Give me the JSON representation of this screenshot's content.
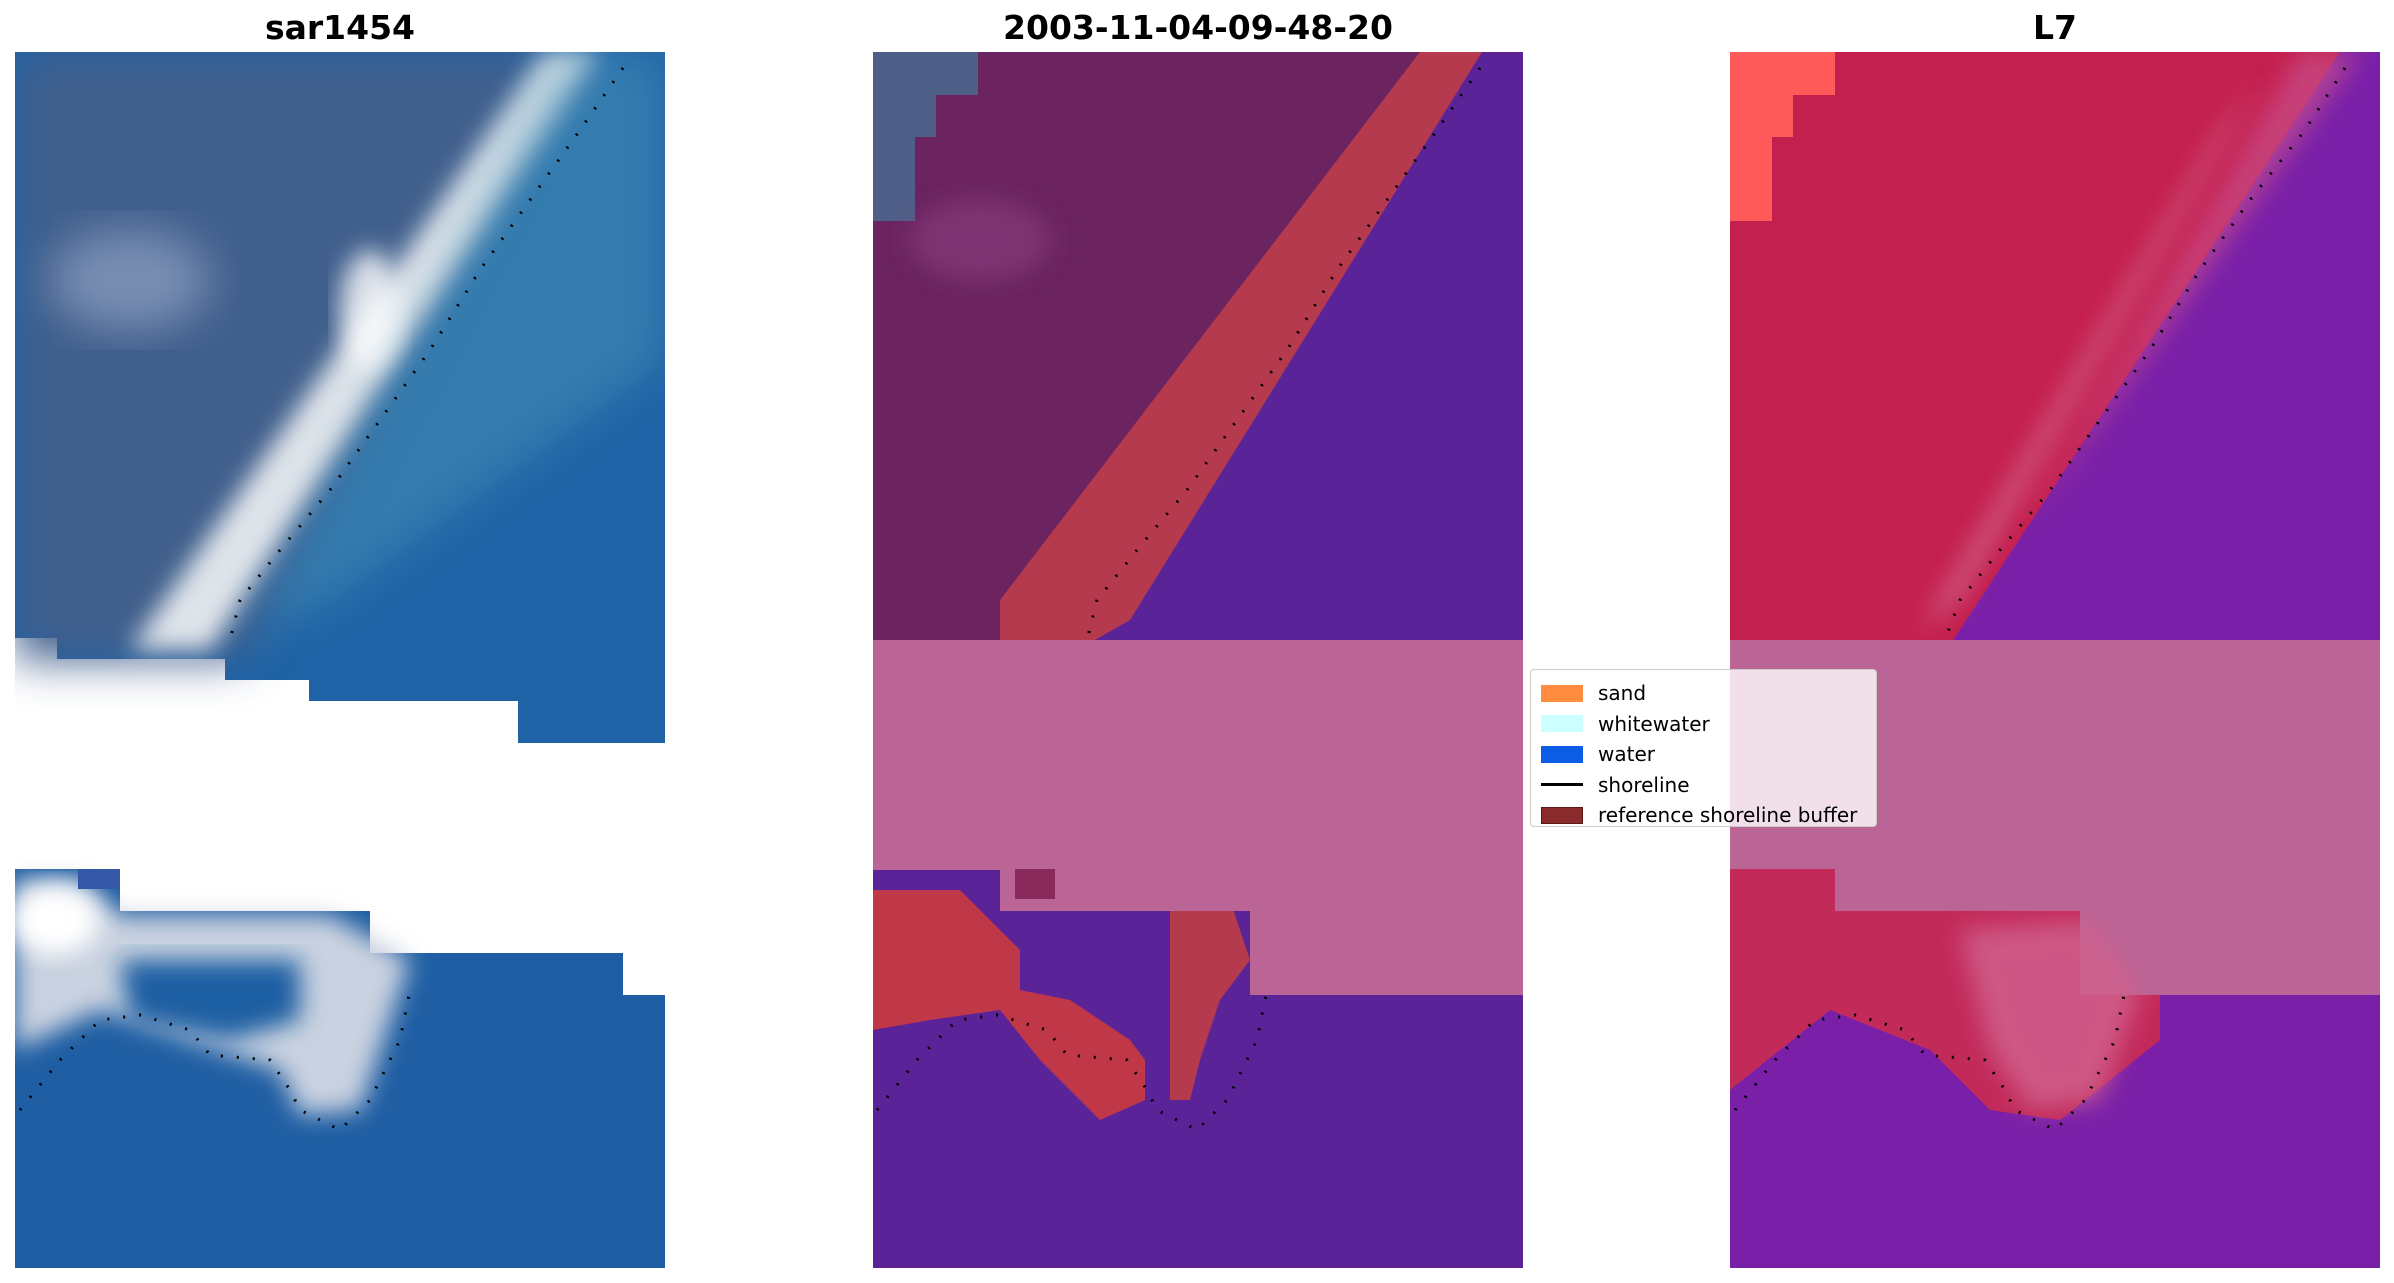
{
  "panels": [
    {
      "title": "sar1454"
    },
    {
      "title": "2003-11-04-09-48-20"
    },
    {
      "title": "L7"
    }
  ],
  "legend": {
    "items": [
      {
        "label": "sand",
        "color": "#ff8c3f",
        "kind": "patch"
      },
      {
        "label": "whitewater",
        "color": "#ccffff",
        "kind": "patch"
      },
      {
        "label": "water",
        "color": "#0d5ce6",
        "kind": "patch"
      },
      {
        "label": "shoreline",
        "color": "#000000",
        "kind": "line"
      },
      {
        "label": "reference shoreline buffer",
        "color": "#8b2a2a",
        "kind": "patch"
      }
    ]
  }
}
